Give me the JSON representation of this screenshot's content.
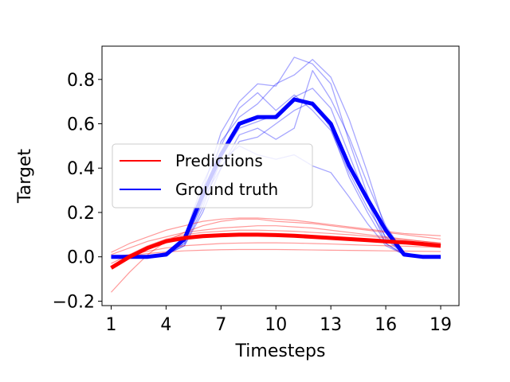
{
  "chart_data": {
    "type": "line",
    "xlabel": "Timesteps",
    "ylabel": "Target",
    "xlim": [
      0.5,
      20.0
    ],
    "ylim": [
      -0.22,
      0.95
    ],
    "x_ticks": [
      1,
      4,
      7,
      10,
      13,
      16,
      19
    ],
    "x_tick_labels": [
      "1",
      "4",
      "7",
      "10",
      "13",
      "16",
      "19"
    ],
    "y_ticks": [
      -0.2,
      0.0,
      0.2,
      0.4,
      0.6,
      0.8
    ],
    "y_tick_labels": [
      "−0.2",
      "0.0",
      "0.2",
      "0.4",
      "0.6",
      "0.8"
    ],
    "grid": false,
    "legend": {
      "placement": "center-left",
      "entries": [
        {
          "label": "Predictions",
          "color": "#ff0000"
        },
        {
          "label": "Ground truth",
          "color": "#0000ff"
        }
      ]
    },
    "x": [
      1,
      2,
      3,
      4,
      5,
      6,
      7,
      8,
      9,
      10,
      11,
      12,
      13,
      14,
      15,
      16,
      17,
      18,
      19
    ],
    "series": [
      {
        "role": "ground-truth-mean",
        "color": "#0000ff",
        "values": [
          0.0,
          0.0,
          0.0,
          0.01,
          0.08,
          0.28,
          0.46,
          0.6,
          0.63,
          0.63,
          0.71,
          0.69,
          0.6,
          0.41,
          0.26,
          0.12,
          0.01,
          0.0,
          0.0
        ]
      },
      {
        "role": "prediction-mean",
        "color": "#ff0000",
        "values": [
          -0.05,
          0.0,
          0.04,
          0.07,
          0.085,
          0.093,
          0.097,
          0.1,
          0.1,
          0.098,
          0.095,
          0.09,
          0.085,
          0.08,
          0.075,
          0.07,
          0.065,
          0.058,
          0.05
        ]
      }
    ],
    "ground_truth_samples": [
      [
        0.0,
        0.0,
        0.0,
        0.01,
        0.08,
        0.3,
        0.56,
        0.7,
        0.78,
        0.77,
        0.9,
        0.87,
        0.78,
        0.52,
        0.28,
        0.08,
        0.01,
        0.0,
        0.0
      ],
      [
        0.0,
        0.0,
        0.0,
        0.01,
        0.06,
        0.25,
        0.52,
        0.63,
        0.69,
        0.78,
        0.82,
        0.89,
        0.81,
        0.62,
        0.38,
        0.12,
        0.01,
        0.0,
        0.0
      ],
      [
        0.0,
        0.0,
        0.0,
        0.01,
        0.05,
        0.22,
        0.45,
        0.58,
        0.61,
        0.64,
        0.72,
        0.76,
        0.67,
        0.46,
        0.25,
        0.06,
        0.01,
        0.0,
        0.0
      ],
      [
        0.0,
        0.0,
        0.0,
        0.01,
        0.07,
        0.26,
        0.4,
        0.52,
        0.54,
        0.6,
        0.66,
        0.7,
        0.58,
        0.36,
        0.2,
        0.06,
        0.01,
        0.0,
        0.0
      ],
      [
        0.0,
        0.0,
        0.0,
        0.01,
        0.06,
        0.24,
        0.43,
        0.5,
        0.46,
        0.44,
        0.46,
        0.41,
        0.38,
        0.27,
        0.15,
        0.05,
        0.01,
        0.0,
        0.0
      ],
      [
        0.0,
        0.0,
        0.0,
        0.02,
        0.09,
        0.33,
        0.5,
        0.67,
        0.74,
        0.66,
        0.73,
        0.66,
        0.57,
        0.38,
        0.22,
        0.09,
        0.01,
        0.0,
        0.0
      ],
      [
        0.0,
        0.0,
        0.0,
        0.01,
        0.05,
        0.2,
        0.4,
        0.55,
        0.58,
        0.53,
        0.58,
        0.84,
        0.71,
        0.54,
        0.33,
        0.14,
        0.02,
        0.0,
        0.0
      ]
    ],
    "prediction_samples": [
      [
        -0.16,
        -0.07,
        0.01,
        0.07,
        0.11,
        0.14,
        0.16,
        0.17,
        0.17,
        0.16,
        0.155,
        0.15,
        0.14,
        0.13,
        0.12,
        0.11,
        0.1,
        0.09,
        0.08
      ],
      [
        0.02,
        0.06,
        0.09,
        0.12,
        0.14,
        0.16,
        0.17,
        0.175,
        0.175,
        0.17,
        0.165,
        0.155,
        0.145,
        0.135,
        0.125,
        0.115,
        0.105,
        0.1,
        0.095
      ],
      [
        0.01,
        0.04,
        0.07,
        0.09,
        0.11,
        0.12,
        0.13,
        0.135,
        0.14,
        0.14,
        0.135,
        0.13,
        0.12,
        0.11,
        0.1,
        0.09,
        0.08,
        0.07,
        0.06
      ],
      [
        0.0,
        0.01,
        0.025,
        0.04,
        0.05,
        0.055,
        0.06,
        0.062,
        0.063,
        0.063,
        0.062,
        0.06,
        0.058,
        0.055,
        0.052,
        0.05,
        0.048,
        0.045,
        0.042
      ],
      [
        0.0,
        0.005,
        0.015,
        0.022,
        0.027,
        0.03,
        0.032,
        0.033,
        0.033,
        0.033,
        0.032,
        0.031,
        0.03,
        0.029,
        0.028,
        0.027,
        0.026,
        0.025,
        0.024
      ],
      [
        -0.03,
        0.01,
        0.05,
        0.08,
        0.1,
        0.11,
        0.115,
        0.12,
        0.12,
        0.118,
        0.115,
        0.11,
        0.105,
        0.1,
        0.093,
        0.085,
        0.077,
        0.07,
        0.063
      ]
    ]
  }
}
